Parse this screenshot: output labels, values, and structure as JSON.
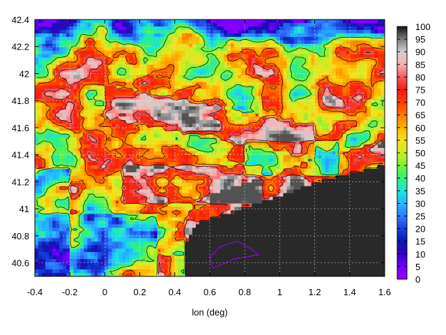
{
  "chart_data": {
    "type": "heatmap",
    "title": "",
    "xlabel": "lon (deg)",
    "ylabel": "",
    "xlim": [
      -0.4,
      1.6
    ],
    "ylim": [
      40.5,
      42.4
    ],
    "x_ticks": [
      "-0.4",
      "-0.2",
      "0",
      "0.2",
      "0.4",
      "0.6",
      "0.8",
      "1",
      "1.2",
      "1.4",
      "1.6"
    ],
    "y_ticks": [
      "40.6",
      "40.8",
      "41",
      "41.2",
      "41.4",
      "41.6",
      "41.8",
      "42",
      "42.2",
      "42.4"
    ],
    "colorbar": {
      "min": 0,
      "max": 100,
      "ticks": [
        "0",
        "5",
        "10",
        "15",
        "20",
        "25",
        "30",
        "35",
        "40",
        "45",
        "50",
        "55",
        "60",
        "65",
        "70",
        "75",
        "80",
        "85",
        "90",
        "95",
        "100"
      ],
      "colors": [
        "#9a00ff",
        "#6f00ff",
        "#3300cc",
        "#0a1aa8",
        "#1b3fe0",
        "#2f7bff",
        "#23b9ff",
        "#19e6d8",
        "#33f07a",
        "#7cf03a",
        "#c8ef26",
        "#f4e01c",
        "#ffb400",
        "#ff7a00",
        "#ff3a00",
        "#f21d10",
        "#f45a5a",
        "#f7b4b4",
        "#cfcfcf",
        "#7c7c7c",
        "#141414"
      ]
    },
    "sea_region": "lower-right",
    "grid": "dashed-white-over-sea",
    "contours": true
  }
}
